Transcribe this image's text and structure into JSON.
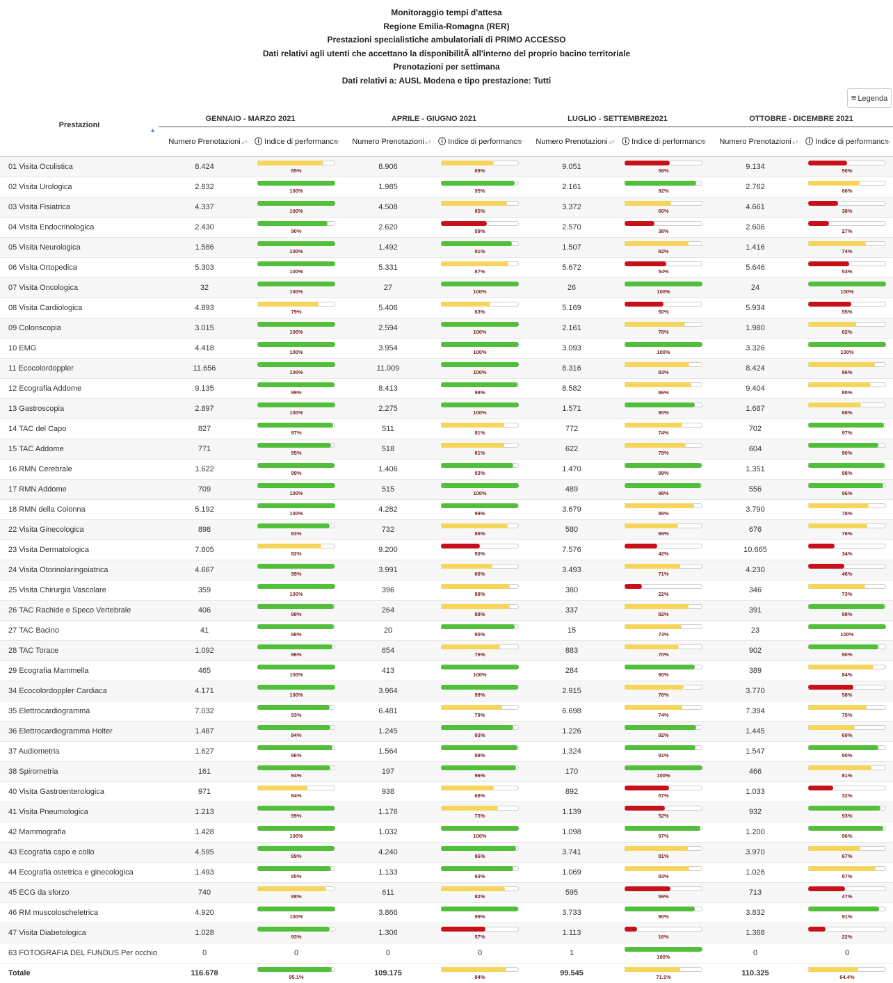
{
  "titles": [
    "Monitoraggio tempi d'attesa",
    "Regione Emilia-Romagna (RER)",
    "Prestazioni specialistiche ambulatoriali di PRIMO ACCESSO",
    "Dati relativi agli utenti che accettano la disponibilitÃ  all'interno del proprio bacino territoriale",
    "Prenotazioni per settimana",
    "Dati relativi a: AUSL Modena e tipo prestazione: Tutti"
  ],
  "legend_button": "Legenda",
  "table": {
    "first_header": "Prestazioni",
    "periods": [
      "GENNAIO - MARZO 2021",
      "APRILE - GIUGNO 2021",
      "LUGLIO - SETTEMBRE2021",
      "OTTOBRE - DICEMBRE 2021"
    ],
    "subheaders": [
      "Numero Prenotazioni",
      "Indice di performance"
    ],
    "rows": [
      [
        "01 Visita Oculistica",
        "8.424",
        "85%",
        "8.906",
        "68%",
        "9.051",
        "58%",
        "9.134",
        "50%"
      ],
      [
        "02 Visita Urologica",
        "2.832",
        "100%",
        "1.985",
        "95%",
        "2.161",
        "92%",
        "2.762",
        "66%"
      ],
      [
        "03 Visita Fisiatrica",
        "4.337",
        "100%",
        "4.508",
        "85%",
        "3.372",
        "60%",
        "4.661",
        "38%"
      ],
      [
        "04 Visita Endocrinologica",
        "2.430",
        "90%",
        "2.620",
        "59%",
        "2.570",
        "38%",
        "2.606",
        "27%"
      ],
      [
        "05 Visita Neurologica",
        "1.586",
        "100%",
        "1.492",
        "91%",
        "1.507",
        "82%",
        "1.416",
        "74%"
      ],
      [
        "06 Visita Ortopedica",
        "5.303",
        "100%",
        "5.331",
        "87%",
        "5.672",
        "54%",
        "5.646",
        "53%"
      ],
      [
        "07 Visita Oncologica",
        "32",
        "100%",
        "27",
        "100%",
        "26",
        "100%",
        "24",
        "100%"
      ],
      [
        "08 Visita Cardiologica",
        "4.893",
        "79%",
        "5.406",
        "63%",
        "5.169",
        "50%",
        "5.934",
        "55%"
      ],
      [
        "09 Colonscopia",
        "3.015",
        "100%",
        "2.594",
        "100%",
        "2.161",
        "78%",
        "1.980",
        "62%"
      ],
      [
        "10 EMG",
        "4.418",
        "100%",
        "3.954",
        "100%",
        "3.093",
        "100%",
        "3.326",
        "100%"
      ],
      [
        "11 Ecocolordoppler",
        "11.656",
        "100%",
        "11.009",
        "100%",
        "8.316",
        "83%",
        "8.424",
        "86%"
      ],
      [
        "12 Ecografia Addome",
        "9.135",
        "99%",
        "8.413",
        "98%",
        "8.582",
        "86%",
        "9.404",
        "80%"
      ],
      [
        "13 Gastroscopia",
        "2.897",
        "100%",
        "2.275",
        "100%",
        "1.571",
        "90%",
        "1.687",
        "68%"
      ],
      [
        "14 TAC del Capo",
        "827",
        "97%",
        "511",
        "81%",
        "772",
        "74%",
        "702",
        "97%"
      ],
      [
        "15 TAC Addome",
        "771",
        "95%",
        "518",
        "81%",
        "622",
        "79%",
        "604",
        "90%"
      ],
      [
        "16 RMN Cerebrale",
        "1.622",
        "99%",
        "1.406",
        "93%",
        "1.470",
        "99%",
        "1.351",
        "98%"
      ],
      [
        "17 RMN Addome",
        "709",
        "100%",
        "515",
        "100%",
        "489",
        "98%",
        "556",
        "96%"
      ],
      [
        "18 RMN della Colonna",
        "5.192",
        "100%",
        "4.282",
        "99%",
        "3.679",
        "89%",
        "3.790",
        "78%"
      ],
      [
        "22 Visita Ginecologica",
        "898",
        "93%",
        "732",
        "86%",
        "580",
        "69%",
        "676",
        "76%"
      ],
      [
        "23 Visita Dermatologica",
        "7.805",
        "82%",
        "9.200",
        "50%",
        "7.576",
        "42%",
        "10.665",
        "34%"
      ],
      [
        "24 Visita Otorinolaringoiatrica",
        "4.667",
        "99%",
        "3.991",
        "66%",
        "3.493",
        "71%",
        "4.230",
        "46%"
      ],
      [
        "25 Visita Chirurgia Vascolare",
        "359",
        "100%",
        "396",
        "88%",
        "380",
        "22%",
        "346",
        "73%"
      ],
      [
        "26 TAC Rachide e Speco Vertebrale",
        "406",
        "98%",
        "264",
        "88%",
        "337",
        "82%",
        "391",
        "98%"
      ],
      [
        "27 TAC Bacino",
        "41",
        "98%",
        "20",
        "95%",
        "15",
        "73%",
        "23",
        "100%"
      ],
      [
        "28 TAC Torace",
        "1.092",
        "96%",
        "654",
        "76%",
        "883",
        "70%",
        "902",
        "90%"
      ],
      [
        "29 Ecografia Mammella",
        "465",
        "100%",
        "413",
        "100%",
        "284",
        "90%",
        "389",
        "84%"
      ],
      [
        "34 Ecocolordoppler Cardiaca",
        "4.171",
        "100%",
        "3.964",
        "99%",
        "2.915",
        "76%",
        "3.770",
        "58%"
      ],
      [
        "35 Elettrocardiogramma",
        "7.032",
        "93%",
        "6.481",
        "79%",
        "6.698",
        "74%",
        "7.394",
        "75%"
      ],
      [
        "36 Elettrocardiogramma Holter",
        "1.487",
        "94%",
        "1.245",
        "93%",
        "1.226",
        "92%",
        "1.445",
        "60%"
      ],
      [
        "37 Audiometria",
        "1.627",
        "96%",
        "1.564",
        "98%",
        "1.324",
        "91%",
        "1.547",
        "90%"
      ],
      [
        "38 Spirometria",
        "161",
        "94%",
        "197",
        "96%",
        "170",
        "100%",
        "466",
        "81%"
      ],
      [
        "40 Visita Gastroenterologica",
        "971",
        "64%",
        "938",
        "68%",
        "892",
        "57%",
        "1.033",
        "32%"
      ],
      [
        "41 Visita Pneumologica",
        "1.213",
        "99%",
        "1.176",
        "73%",
        "1.139",
        "52%",
        "932",
        "93%"
      ],
      [
        "42 Mammografia",
        "1.428",
        "100%",
        "1.032",
        "100%",
        "1.098",
        "97%",
        "1.200",
        "96%"
      ],
      [
        "43 Ecografia capo e collo",
        "4.595",
        "99%",
        "4.240",
        "96%",
        "3.741",
        "81%",
        "3.970",
        "67%"
      ],
      [
        "44 Ecografia ostetrica e ginecologica",
        "1.493",
        "95%",
        "1.133",
        "93%",
        "1.069",
        "83%",
        "1.026",
        "87%"
      ],
      [
        "45 ECG da sforzo",
        "740",
        "88%",
        "611",
        "82%",
        "595",
        "59%",
        "713",
        "47%"
      ],
      [
        "46 RM muscoloscheletrica",
        "4.920",
        "100%",
        "3.866",
        "99%",
        "3.733",
        "90%",
        "3.832",
        "91%"
      ],
      [
        "47 Visita Diabetologica",
        "1.028",
        "93%",
        "1.306",
        "57%",
        "1.113",
        "16%",
        "1.368",
        "22%"
      ],
      [
        "63 FOTOGRAFIA DEL FUNDUS Per occhio",
        "0",
        "0",
        "0",
        "0",
        "1",
        "100%",
        "0",
        "0"
      ]
    ],
    "total": [
      "Totale",
      "116.678",
      "95.1%",
      "109.175",
      "84%",
      "99.545",
      "71.1%",
      "110.325",
      "64.4%"
    ]
  }
}
